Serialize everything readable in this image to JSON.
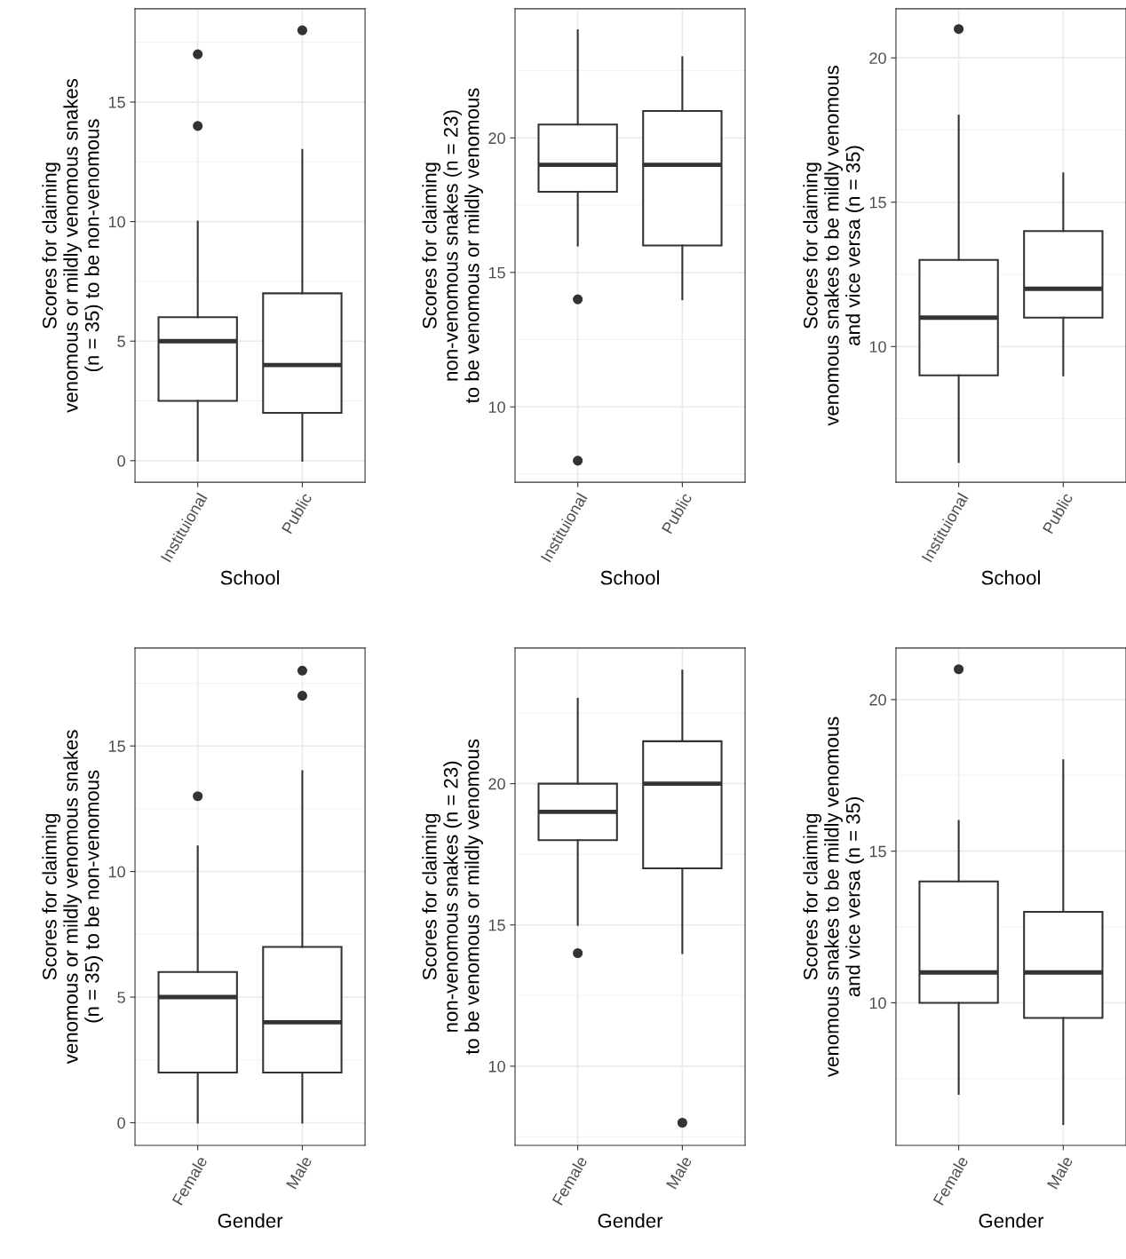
{
  "chart_data": [
    {
      "type": "box",
      "xlabel": "School",
      "ylabel": "Scores for claiming\nvenomous or mildly venomous snakes\n(n = 35) to be non-venomous",
      "categories": [
        "Instituional",
        "Public"
      ],
      "ylim": [
        -0.9,
        18.9
      ],
      "yticks": [
        0,
        5,
        10,
        15
      ],
      "grid": true,
      "boxes": [
        {
          "low": 0,
          "q1": 2.5,
          "median": 5,
          "q3": 6,
          "high": 10,
          "outliers": [
            14,
            17
          ]
        },
        {
          "low": 0,
          "q1": 2,
          "median": 4,
          "q3": 7,
          "high": 13,
          "outliers": [
            18
          ]
        }
      ]
    },
    {
      "type": "box",
      "xlabel": "School",
      "ylabel": "Scores for claiming\nnon-venomous snakes (n = 23)\nto be venomous or mildly venomous",
      "categories": [
        "Instituional",
        "Public"
      ],
      "ylim": [
        7.2,
        24.8
      ],
      "yticks": [
        10,
        15,
        20
      ],
      "grid": true,
      "boxes": [
        {
          "low": 16,
          "q1": 18,
          "median": 19,
          "q3": 20.5,
          "high": 24,
          "outliers": [
            14,
            8
          ]
        },
        {
          "low": 14,
          "q1": 16,
          "median": 19,
          "q3": 21,
          "high": 23
        }
      ]
    },
    {
      "type": "box",
      "xlabel": "School",
      "ylabel": "Scores for claiming\nvenomous snakes to be mildly venomous\nand vice versa (n = 35)",
      "categories": [
        "Instituional",
        "Public"
      ],
      "ylim": [
        5.3,
        21.7
      ],
      "yticks": [
        10,
        15,
        20
      ],
      "grid": true,
      "boxes": [
        {
          "low": 6,
          "q1": 9,
          "median": 11,
          "q3": 13,
          "high": 18,
          "outliers": [
            21
          ]
        },
        {
          "low": 9,
          "q1": 11,
          "median": 12,
          "q3": 14,
          "high": 16
        }
      ]
    },
    {
      "type": "box",
      "xlabel": "Gender",
      "ylabel": "Scores for claiming\nvenomous or mildly venomous snakes\n(n = 35) to be non-venomous",
      "categories": [
        "Female",
        "Male"
      ],
      "ylim": [
        -0.9,
        18.9
      ],
      "yticks": [
        0,
        5,
        10,
        15
      ],
      "grid": true,
      "boxes": [
        {
          "low": 0,
          "q1": 2,
          "median": 5,
          "q3": 6,
          "high": 11,
          "outliers": [
            13
          ]
        },
        {
          "low": 0,
          "q1": 2,
          "median": 4,
          "q3": 7,
          "high": 14,
          "outliers": [
            17,
            18
          ]
        }
      ]
    },
    {
      "type": "box",
      "xlabel": "Gender",
      "ylabel": "Scores for claiming\nnon-venomous snakes (n = 23)\nto be venomous or mildly venomous",
      "categories": [
        "Female",
        "Male"
      ],
      "ylim": [
        7.2,
        24.8
      ],
      "yticks": [
        10,
        15,
        20
      ],
      "grid": true,
      "boxes": [
        {
          "low": 15,
          "q1": 18,
          "median": 19,
          "q3": 20,
          "high": 23,
          "outliers": [
            14
          ]
        },
        {
          "low": 14,
          "q1": 17,
          "median": 20,
          "q3": 21.5,
          "high": 24,
          "outliers": [
            8
          ]
        }
      ]
    },
    {
      "type": "box",
      "xlabel": "Gender",
      "ylabel": "Scores for claiming\nvenomous snakes to be mildly venomous\nand vice versa (n = 35)",
      "categories": [
        "Female",
        "Male"
      ],
      "ylim": [
        5.3,
        21.7
      ],
      "yticks": [
        10,
        15,
        20
      ],
      "grid": true,
      "boxes": [
        {
          "low": 7,
          "q1": 10,
          "median": 11,
          "q3": 14,
          "high": 16,
          "outliers": [
            21
          ]
        },
        {
          "low": 6,
          "q1": 9.5,
          "median": 11,
          "q3": 13,
          "high": 18
        }
      ]
    }
  ]
}
